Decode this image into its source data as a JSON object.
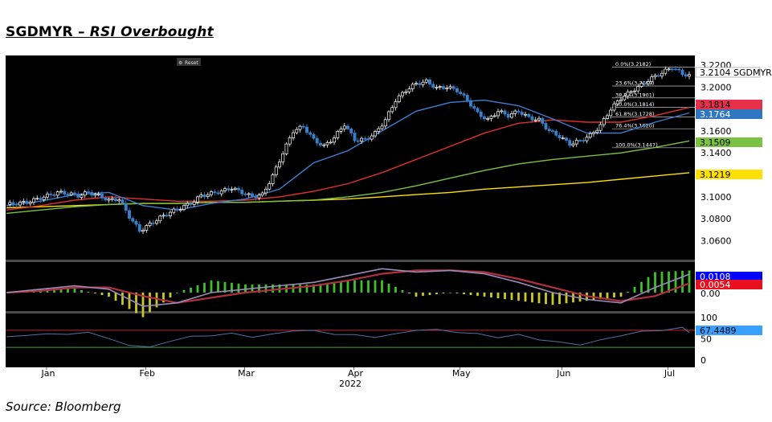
{
  "header": {
    "title_main": "SGDMYR – ",
    "title_italic": "RSI Overbought"
  },
  "footer": {
    "source": "Source: Bloomberg"
  },
  "toolbar": {
    "reset_label": "Reset"
  },
  "colors": {
    "background": "#000000",
    "candle_up": "#ffffff",
    "candle_down": "#3a7fc8",
    "ma_short": "#3d7fd1",
    "ma_mid": "#e0302e",
    "ma_long": "#7bc142",
    "ma_longest": "#ffe000",
    "rsi_line": "#4f72a8",
    "overbought_line": "#c0272d",
    "oversold_line": "#3f9e40"
  },
  "chart_data": [
    {
      "type": "candlestick",
      "title": "SGDMYR",
      "y_ticks": [
        "3.2200",
        "3.2000",
        "3.1600",
        "3.1400",
        "3.1000",
        "3.0800",
        "3.0600"
      ],
      "ylim": [
        3.045,
        3.228
      ],
      "x_ticks": [
        "Jan",
        "Feb",
        "Mar",
        "Apr",
        "May",
        "Jun",
        "Jul"
      ],
      "x_year": "2022",
      "tags": [
        {
          "text": "3.2104 SGDMYR",
          "value": 3.2104,
          "color": "#ffffff",
          "text_color": "#000000"
        },
        {
          "text": "3.1814",
          "value": 3.1814,
          "color": "#e8304a",
          "text_color": "#000000"
        },
        {
          "text": "3.1764",
          "value": 3.1764,
          "color": "#2f77c3",
          "text_color": "#ffffff"
        },
        {
          "text": "3.1509",
          "value": 3.1509,
          "color": "#7bc142",
          "text_color": "#000000"
        },
        {
          "text": "3.1219",
          "value": 3.1219,
          "color": "#ffe000",
          "text_color": "#000000"
        }
      ],
      "fibonacci": [
        {
          "label": "0.0%(3.2182)",
          "value": 3.2182
        },
        {
          "label": "23.6%(3.2009)",
          "value": 3.2009
        },
        {
          "label": "38.2%(3.1901)",
          "value": 3.1901
        },
        {
          "label": "50.0%(3.1814)",
          "value": 3.1814
        },
        {
          "label": "61.8%(3.1728)",
          "value": 3.1728
        },
        {
          "label": "76.4%(3.1620)",
          "value": 3.162
        },
        {
          "label": "100.0%(3.1447)",
          "value": 3.1447
        }
      ],
      "series": [
        {
          "name": "close",
          "x": [
            0,
            3,
            6,
            9,
            12,
            15,
            18,
            21,
            24,
            27,
            30,
            33,
            36,
            39,
            42,
            45,
            48,
            51,
            54,
            57,
            60,
            63,
            66,
            69,
            72,
            75,
            78,
            81,
            84,
            87,
            90,
            93,
            96,
            99,
            102,
            105,
            108,
            111,
            114,
            117,
            120,
            123,
            126,
            129,
            132,
            135,
            138,
            141,
            144,
            147,
            150,
            153,
            156,
            159,
            162,
            165,
            168,
            171,
            174,
            177,
            180,
            183,
            186,
            189,
            192,
            195,
            198,
            200
          ],
          "values": [
            3.093,
            3.094,
            3.095,
            3.098,
            3.101,
            3.104,
            3.103,
            3.101,
            3.104,
            3.101,
            3.097,
            3.098,
            3.082,
            3.069,
            3.075,
            3.081,
            3.086,
            3.09,
            3.094,
            3.101,
            3.103,
            3.105,
            3.108,
            3.104,
            3.1,
            3.102,
            3.119,
            3.14,
            3.16,
            3.164,
            3.152,
            3.146,
            3.154,
            3.166,
            3.152,
            3.152,
            3.158,
            3.17,
            3.188,
            3.197,
            3.203,
            3.205,
            3.199,
            3.2,
            3.197,
            3.188,
            3.176,
            3.17,
            3.178,
            3.174,
            3.178,
            3.172,
            3.17,
            3.16,
            3.155,
            3.148,
            3.151,
            3.156,
            3.165,
            3.18,
            3.19,
            3.196,
            3.202,
            3.208,
            3.213,
            3.218,
            3.212,
            3.2104
          ]
        },
        {
          "name": "MA short",
          "x": [
            0,
            10,
            20,
            30,
            40,
            50,
            60,
            70,
            80,
            90,
            100,
            110,
            120,
            130,
            140,
            150,
            160,
            170,
            180,
            190,
            200
          ],
          "values": [
            3.092,
            3.096,
            3.102,
            3.104,
            3.092,
            3.088,
            3.094,
            3.098,
            3.107,
            3.131,
            3.142,
            3.16,
            3.178,
            3.186,
            3.188,
            3.183,
            3.171,
            3.158,
            3.158,
            3.168,
            3.1764
          ]
        },
        {
          "name": "MA mid",
          "x": [
            0,
            10,
            20,
            30,
            40,
            50,
            60,
            70,
            80,
            90,
            100,
            110,
            120,
            130,
            140,
            150,
            160,
            170,
            180,
            190,
            200
          ],
          "values": [
            3.088,
            3.092,
            3.097,
            3.1,
            3.098,
            3.096,
            3.096,
            3.097,
            3.1,
            3.105,
            3.112,
            3.122,
            3.134,
            3.146,
            3.158,
            3.167,
            3.17,
            3.168,
            3.168,
            3.174,
            3.1814
          ]
        },
        {
          "name": "MA long",
          "x": [
            0,
            10,
            20,
            30,
            40,
            50,
            60,
            70,
            80,
            90,
            100,
            110,
            120,
            130,
            140,
            150,
            160,
            170,
            180,
            190,
            200
          ],
          "values": [
            3.085,
            3.088,
            3.091,
            3.093,
            3.094,
            3.094,
            3.095,
            3.095,
            3.096,
            3.097,
            3.1,
            3.104,
            3.11,
            3.117,
            3.124,
            3.13,
            3.134,
            3.137,
            3.14,
            3.145,
            3.1509
          ]
        },
        {
          "name": "MA longest",
          "x": [
            0,
            10,
            20,
            30,
            40,
            50,
            60,
            70,
            80,
            90,
            100,
            110,
            120,
            130,
            140,
            150,
            160,
            170,
            180,
            190,
            200
          ],
          "values": [
            3.09,
            3.091,
            3.092,
            3.093,
            3.094,
            3.094,
            3.095,
            3.095,
            3.096,
            3.097,
            3.098,
            3.1,
            3.102,
            3.104,
            3.107,
            3.109,
            3.111,
            3.113,
            3.116,
            3.119,
            3.1219
          ]
        }
      ]
    },
    {
      "type": "histogram",
      "title": "MACD",
      "y_ticks": [
        "0.00"
      ],
      "tags": [
        {
          "text": "0.0108",
          "color": "#0000ff",
          "text_color": "#ffffff"
        },
        {
          "text": "0.0054",
          "color": "#e8101c",
          "text_color": "#ffffff"
        }
      ],
      "macd": {
        "x": [
          0,
          10,
          20,
          30,
          40,
          50,
          60,
          70,
          80,
          90,
          100,
          110,
          120,
          130,
          140,
          150,
          160,
          170,
          180,
          190,
          200
        ],
        "values": [
          0.0,
          0.002,
          0.004,
          0.002,
          -0.008,
          -0.006,
          0.0,
          0.002,
          0.004,
          0.006,
          0.01,
          0.014,
          0.012,
          0.013,
          0.011,
          0.006,
          0.0,
          -0.004,
          -0.006,
          0.003,
          0.0108
        ]
      },
      "signal": {
        "x": [
          0,
          10,
          20,
          30,
          40,
          50,
          60,
          70,
          80,
          90,
          100,
          110,
          120,
          130,
          140,
          150,
          160,
          170,
          180,
          190,
          200
        ],
        "values": [
          0.0,
          0.001,
          0.003,
          0.003,
          -0.002,
          -0.006,
          -0.003,
          0.0,
          0.002,
          0.004,
          0.007,
          0.011,
          0.013,
          0.013,
          0.012,
          0.008,
          0.003,
          -0.002,
          -0.005,
          -0.002,
          0.0054
        ]
      }
    },
    {
      "type": "line",
      "title": "RSI",
      "y_ticks": [
        "100",
        "50",
        "0"
      ],
      "ylim": [
        0,
        100
      ],
      "levels": [
        70,
        30
      ],
      "tags": [
        {
          "text": "67.4489",
          "color": "#3aa0ff",
          "text_color": "#000000"
        }
      ],
      "series": [
        {
          "name": "RSI",
          "x": [
            0,
            6,
            12,
            18,
            24,
            30,
            36,
            42,
            48,
            54,
            60,
            66,
            72,
            78,
            84,
            90,
            96,
            102,
            108,
            114,
            120,
            126,
            132,
            138,
            144,
            150,
            156,
            162,
            168,
            174,
            180,
            186,
            192,
            198,
            200
          ],
          "values": [
            55,
            58,
            62,
            60,
            66,
            50,
            35,
            30,
            45,
            55,
            58,
            62,
            55,
            60,
            70,
            68,
            62,
            58,
            55,
            60,
            72,
            70,
            67,
            60,
            55,
            58,
            50,
            40,
            38,
            45,
            60,
            65,
            72,
            74,
            67.4489
          ]
        }
      ]
    }
  ]
}
